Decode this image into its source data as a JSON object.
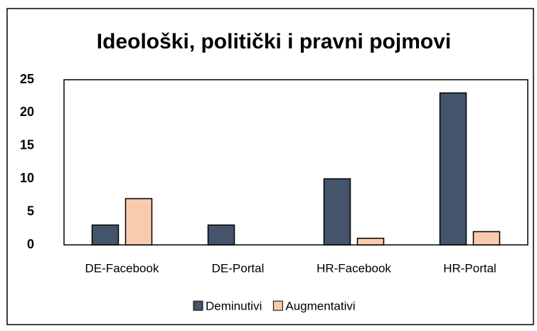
{
  "chart_data": {
    "type": "bar",
    "title": "Ideološki, politički i pravni pojmovi",
    "categories": [
      "DE-Facebook",
      "DE-Portal",
      "HR-Facebook",
      "HR-Portal"
    ],
    "series": [
      {
        "name": "Deminutivi",
        "color": "#44546a",
        "values": [
          3,
          3,
          10,
          23
        ]
      },
      {
        "name": "Augmentativi",
        "color": "#f8cbad",
        "values": [
          7,
          0,
          1,
          2
        ]
      }
    ],
    "ylim": [
      0,
      25
    ],
    "yticks": [
      0,
      5,
      10,
      15,
      20,
      25
    ],
    "grid": false,
    "legend": "bottom"
  }
}
